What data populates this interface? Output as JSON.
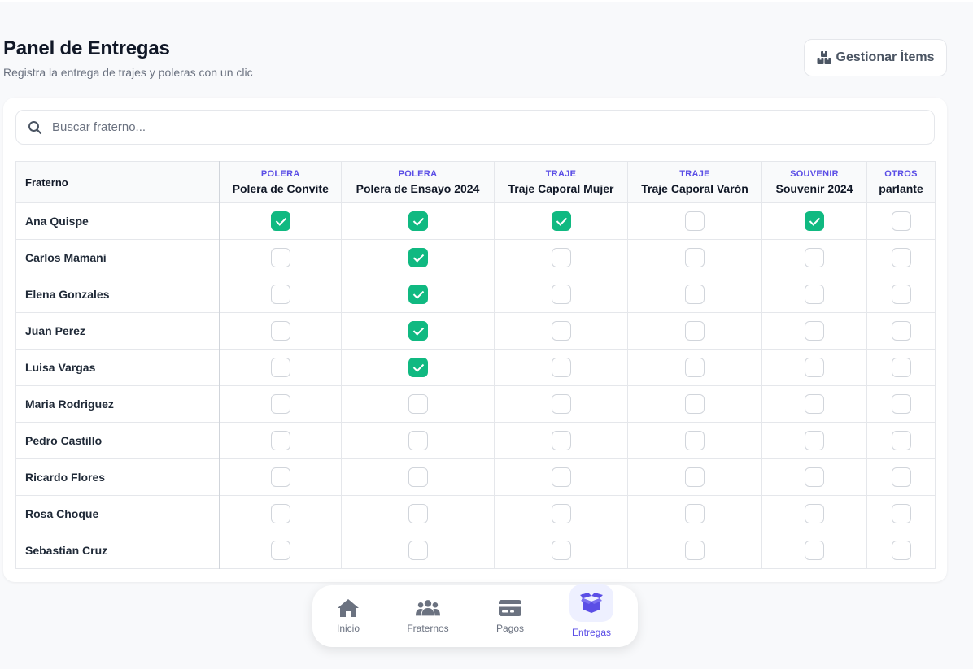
{
  "header": {
    "title": "Panel de Entregas",
    "subtitle": "Registra la entrega de trajes y poleras con un clic",
    "manage_button": "Gestionar Ítems"
  },
  "search": {
    "placeholder": "Buscar fraterno..."
  },
  "table": {
    "name_header": "Fraterno",
    "items": [
      {
        "category": "POLERA",
        "name": "Polera de Convite"
      },
      {
        "category": "POLERA",
        "name": "Polera de Ensayo 2024"
      },
      {
        "category": "TRAJE",
        "name": "Traje Caporal Mujer"
      },
      {
        "category": "TRAJE",
        "name": "Traje Caporal Varón"
      },
      {
        "category": "SOUVENIR",
        "name": "Souvenir 2024"
      },
      {
        "category": "OTROS",
        "name": "parlante"
      }
    ],
    "rows": [
      {
        "name": "Ana Quispe",
        "checks": [
          true,
          true,
          true,
          false,
          true,
          false
        ]
      },
      {
        "name": "Carlos Mamani",
        "checks": [
          false,
          true,
          false,
          false,
          false,
          false
        ]
      },
      {
        "name": "Elena Gonzales",
        "checks": [
          false,
          true,
          false,
          false,
          false,
          false
        ]
      },
      {
        "name": "Juan Perez",
        "checks": [
          false,
          true,
          false,
          false,
          false,
          false
        ]
      },
      {
        "name": "Luisa Vargas",
        "checks": [
          false,
          true,
          false,
          false,
          false,
          false
        ]
      },
      {
        "name": "Maria Rodriguez",
        "checks": [
          false,
          false,
          false,
          false,
          false,
          false
        ]
      },
      {
        "name": "Pedro Castillo",
        "checks": [
          false,
          false,
          false,
          false,
          false,
          false
        ]
      },
      {
        "name": "Ricardo Flores",
        "checks": [
          false,
          false,
          false,
          false,
          false,
          false
        ]
      },
      {
        "name": "Rosa Choque",
        "checks": [
          false,
          false,
          false,
          false,
          false,
          false
        ]
      },
      {
        "name": "Sebastian Cruz",
        "checks": [
          false,
          false,
          false,
          false,
          false,
          false
        ]
      }
    ]
  },
  "nav": {
    "items": [
      {
        "label": "Inicio",
        "icon": "home-icon"
      },
      {
        "label": "Fraternos",
        "icon": "users-icon"
      },
      {
        "label": "Pagos",
        "icon": "credit-card-icon"
      },
      {
        "label": "Entregas",
        "icon": "box-icon",
        "active": true
      }
    ]
  },
  "colors": {
    "accent": "#5b4ee6",
    "check": "#10b981",
    "nav_icon": "#6b7280"
  }
}
